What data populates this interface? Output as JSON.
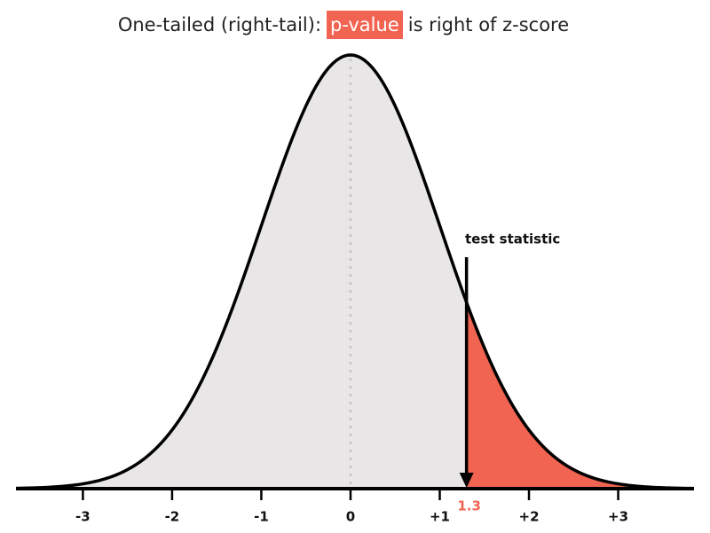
{
  "chart_data": {
    "type": "normal",
    "title_parts": [
      "One-tailed (right-tail):",
      "p-value",
      "is right of z-score"
    ],
    "annotation": "test statistic",
    "test_statistic": 1.3,
    "xlim": [
      -3.75,
      3.85
    ],
    "xticks": [
      -3,
      -2,
      -1,
      0,
      {
        "value": 1,
        "label": "+1"
      },
      {
        "value": 2,
        "label": "+2"
      },
      {
        "value": 3,
        "label": "+3"
      }
    ],
    "curve_color": "#e8e6e6",
    "tail_color": "#f26452",
    "mean_line": true
  }
}
